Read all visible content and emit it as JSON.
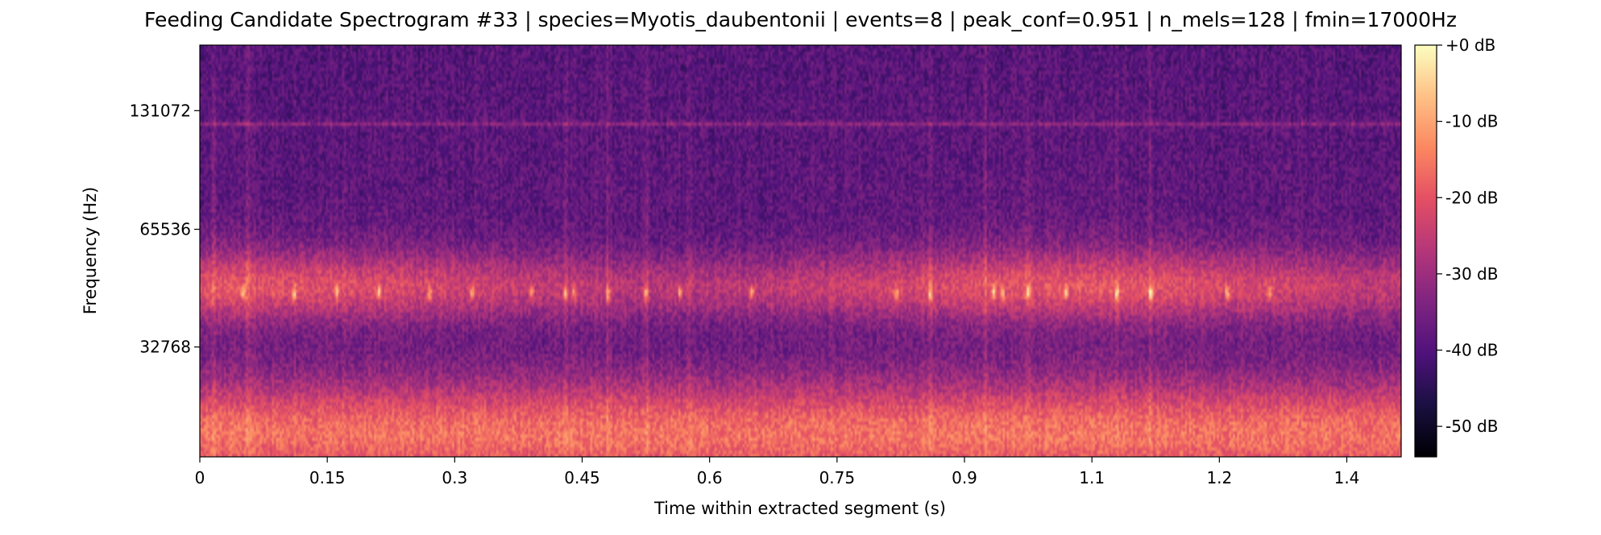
{
  "chart_data": {
    "type": "heatmap",
    "title": "Feeding Candidate Spectrogram #33 | species=Myotis_daubentonii | events=8 | peak_conf=0.951 | n_mels=128 | fmin=17000Hz",
    "xlabel": "Time within extracted segment (s)",
    "ylabel": "Frequency (Hz)",
    "xlim": [
      0,
      1.414
    ],
    "x_ticks": [
      0,
      0.15,
      0.3,
      0.45,
      0.6,
      0.75,
      0.9,
      1.05,
      1.2,
      1.35
    ],
    "x_tick_labels": [
      "0",
      "0.15",
      "0.3",
      "0.45",
      "0.6",
      "0.75",
      "0.9",
      "1.1",
      "1.2",
      "1.4"
    ],
    "y_scale": "mel",
    "ylim_hz": [
      17000,
      192000
    ],
    "y_ticks": [
      32768,
      65536,
      131072
    ],
    "y_tick_labels": [
      "32768",
      "65536",
      "131072"
    ],
    "colorbar": {
      "colormap": "magma",
      "range_db": [
        -54,
        0
      ],
      "ticks": [
        0,
        -10,
        -20,
        -30,
        -40,
        -50
      ],
      "tick_labels": [
        "+0 dB",
        "-10 dB",
        "-20 dB",
        "-30 dB",
        "-40 dB",
        "-50 dB"
      ]
    },
    "features": {
      "low_band_hz": [
        17000,
        24000
      ],
      "call_band_hz": [
        40000,
        56000
      ],
      "tone_line_hz": 122000,
      "vertical_call_times_s": [
        0.015,
        0.055,
        0.43,
        0.48,
        0.525,
        0.575,
        0.86,
        0.925,
        0.975,
        1.08,
        1.12
      ],
      "call_tick_times_s": [
        0.05,
        0.11,
        0.16,
        0.21,
        0.27,
        0.32,
        0.39,
        0.43,
        0.44,
        0.48,
        0.525,
        0.565,
        0.65,
        0.82,
        0.86,
        0.935,
        0.945,
        0.975,
        1.02,
        1.08,
        1.12,
        1.21,
        1.26
      ]
    }
  },
  "colors": {
    "background": "#ffffff",
    "axis": "#000000"
  }
}
